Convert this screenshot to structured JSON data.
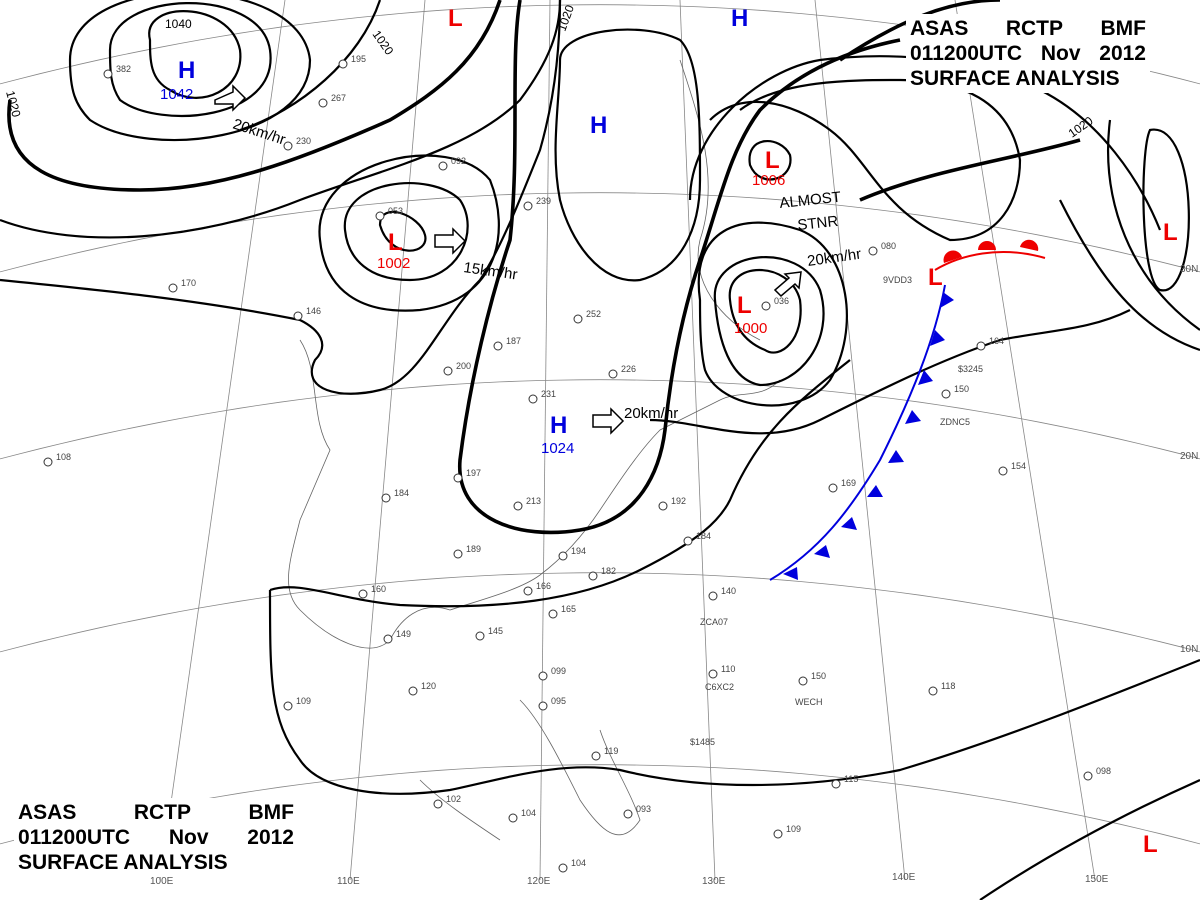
{
  "title": {
    "line1": [
      "ASAS",
      "RCTP",
      "BMF"
    ],
    "line2": [
      "011200UTC",
      "Nov",
      "2012"
    ],
    "line3": "SURFACE  ANALYSIS"
  },
  "colors": {
    "high": "#0000dd",
    "low": "#ee0000",
    "warm_front": "#ee0000",
    "cold_front": "#0000dd",
    "isobar": "#000000",
    "grid": "#888888"
  },
  "pressure_centers": [
    {
      "type": "H",
      "value": "1042"
    },
    {
      "type": "L",
      "value": "1002"
    },
    {
      "type": "H",
      "value": ""
    },
    {
      "type": "H",
      "value": ""
    },
    {
      "type": "L",
      "value": "1006"
    },
    {
      "type": "L",
      "value": "1000"
    },
    {
      "type": "H",
      "value": "1024"
    },
    {
      "type": "L",
      "value": ""
    },
    {
      "type": "L",
      "value": ""
    },
    {
      "type": "L",
      "value": ""
    },
    {
      "type": "L",
      "value": ""
    }
  ],
  "isobar_labels": [
    "1040",
    "1020",
    "1020",
    "1020",
    "1020"
  ],
  "motion": [
    {
      "speed": "20km/hr"
    },
    {
      "speed": "15km/hr"
    },
    {
      "speed": "20km/hr"
    },
    {
      "speed": "20km/hr"
    }
  ],
  "annotations": {
    "almost": "ALMOST",
    "stnr": "STNR"
  },
  "longitudes": [
    "100E",
    "110E",
    "120E",
    "130E",
    "140E",
    "150E"
  ],
  "latitudes": [
    "30N",
    "20N",
    "10N"
  ],
  "stations": [
    {
      "id": "",
      "p": "382"
    },
    {
      "id": "",
      "p": "195"
    },
    {
      "id": "",
      "p": "267"
    },
    {
      "id": "",
      "p": "230"
    },
    {
      "id": "",
      "p": "092"
    },
    {
      "id": "",
      "p": "053"
    },
    {
      "id": "",
      "p": "239"
    },
    {
      "id": "",
      "p": "252"
    },
    {
      "id": "",
      "p": "187"
    },
    {
      "id": "",
      "p": "200"
    },
    {
      "id": "",
      "p": "197"
    },
    {
      "id": "",
      "p": "184"
    },
    {
      "id": "",
      "p": "189"
    },
    {
      "id": "",
      "p": "213"
    },
    {
      "id": "",
      "p": "231"
    },
    {
      "id": "",
      "p": "226"
    },
    {
      "id": "",
      "p": "192"
    },
    {
      "id": "",
      "p": "184"
    },
    {
      "id": "",
      "p": "194"
    },
    {
      "id": "",
      "p": "182"
    },
    {
      "id": "",
      "p": "166"
    },
    {
      "id": "",
      "p": "165"
    },
    {
      "id": "",
      "p": "145"
    },
    {
      "id": "",
      "p": "149"
    },
    {
      "id": "",
      "p": "160"
    },
    {
      "id": "",
      "p": "120"
    },
    {
      "id": "",
      "p": "109"
    },
    {
      "id": "",
      "p": "099"
    },
    {
      "id": "",
      "p": "095"
    },
    {
      "id": "",
      "p": "102"
    },
    {
      "id": "",
      "p": "104"
    },
    {
      "id": "",
      "p": "093"
    },
    {
      "id": "",
      "p": "104"
    },
    {
      "id": "",
      "p": "119"
    },
    {
      "id": "",
      "p": "140"
    },
    {
      "id": "",
      "p": "110"
    },
    {
      "id": "",
      "p": "150"
    },
    {
      "id": "",
      "p": "118"
    },
    {
      "id": "",
      "p": "098"
    },
    {
      "id": "",
      "p": "115"
    },
    {
      "id": "",
      "p": "109"
    },
    {
      "id": "",
      "p": "154"
    },
    {
      "id": "",
      "p": "150"
    },
    {
      "id": "",
      "p": "164"
    },
    {
      "id": "",
      "p": "169"
    },
    {
      "id": "",
      "p": "036"
    },
    {
      "id": "",
      "p": "080"
    },
    {
      "id": "",
      "p": "108"
    },
    {
      "id": "",
      "p": "146"
    },
    {
      "id": "",
      "p": "170"
    }
  ],
  "ship_ids": [
    "9VDD3",
    "ZCA07",
    "C6XC2",
    "WECH",
    "ZDNC5",
    "$1485",
    "$3245"
  ]
}
